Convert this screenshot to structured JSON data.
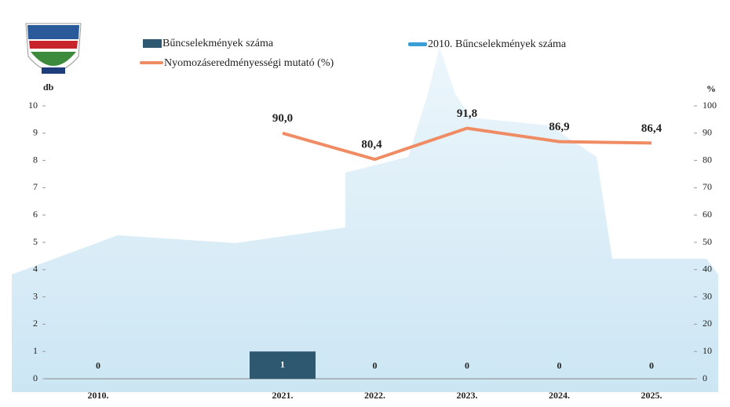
{
  "chart_data": {
    "type": "bar",
    "categories": [
      "2010.",
      "2021.",
      "2022.",
      "2023.",
      "2024.",
      "2025."
    ],
    "ylabel": "db",
    "y2label": "%",
    "ylim": [
      0,
      10
    ],
    "yticks": [
      0,
      1,
      2,
      3,
      4,
      5,
      6,
      7,
      8,
      9,
      10
    ],
    "y2lim": [
      0,
      100
    ],
    "y2ticks": [
      0,
      10,
      20,
      30,
      40,
      50,
      60,
      70,
      80,
      90,
      100
    ],
    "series": [
      {
        "name": "Bűncselekmények száma",
        "type": "bar",
        "color": "#2d5870",
        "axis": "y",
        "values": [
          null,
          1,
          0,
          0,
          0,
          0
        ]
      },
      {
        "name": "2010. Bűncselekmények száma",
        "type": "bar",
        "color": "#3b9ed6",
        "axis": "y",
        "values": [
          0,
          null,
          null,
          null,
          null,
          null
        ]
      },
      {
        "name": "Nyomozáseredményességi mutató (%)",
        "type": "line",
        "color": "#ef8c63",
        "axis": "y2",
        "values": [
          null,
          90.0,
          80.4,
          91.8,
          86.9,
          86.4
        ],
        "value_labels": [
          null,
          "90,0",
          "80,4",
          "91,8",
          "86,9",
          "86,4"
        ]
      }
    ]
  }
}
